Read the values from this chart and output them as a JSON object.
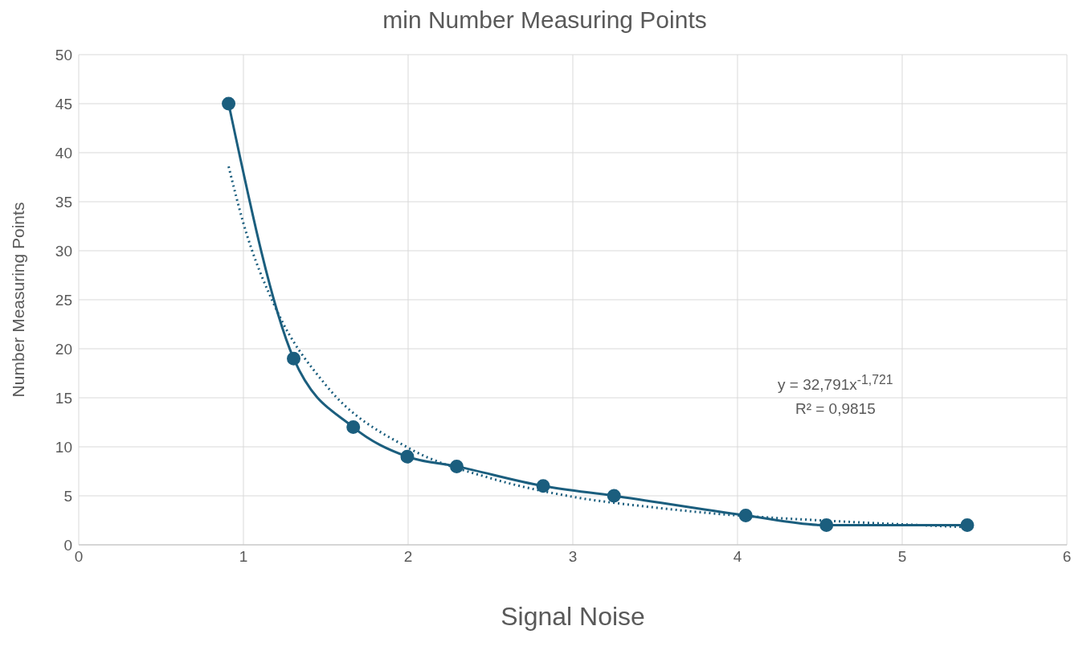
{
  "chart_data": {
    "type": "line",
    "title": "min Number Measuring Points",
    "xlabel": "Signal Noise",
    "ylabel": "Number Measuring Points",
    "xlim": [
      0,
      6
    ],
    "xticks": [
      0,
      1,
      2,
      3,
      4,
      5,
      6
    ],
    "ylim": [
      0,
      50
    ],
    "yticks": [
      0,
      5,
      10,
      15,
      20,
      25,
      30,
      35,
      40,
      45,
      50
    ],
    "grid": true,
    "series": [
      {
        "color": "#1b5e7e",
        "marker": "circle",
        "line_style": "solid",
        "x": [
          0.91,
          1.305,
          1.667,
          1.995,
          2.295,
          2.82,
          3.25,
          4.05,
          4.54,
          5.395
        ],
        "values": [
          45,
          19,
          12,
          9,
          8,
          6,
          5,
          3,
          2,
          2
        ]
      },
      {
        "color": "#1b5e7e",
        "marker": "none",
        "line_style": "dotted",
        "x": [
          0.91,
          1.0,
          1.2,
          1.5,
          2.0,
          2.5,
          3.0,
          3.5,
          4.0,
          4.5,
          5.4
        ],
        "values": [
          38.6,
          32.8,
          24.0,
          16.3,
          9.9,
          6.8,
          4.9,
          3.8,
          3.0,
          2.5,
          1.8
        ]
      }
    ],
    "annotations": [
      "y = 32,791x$^{-1,721}$",
      "R² = 0,9815"
    ]
  }
}
